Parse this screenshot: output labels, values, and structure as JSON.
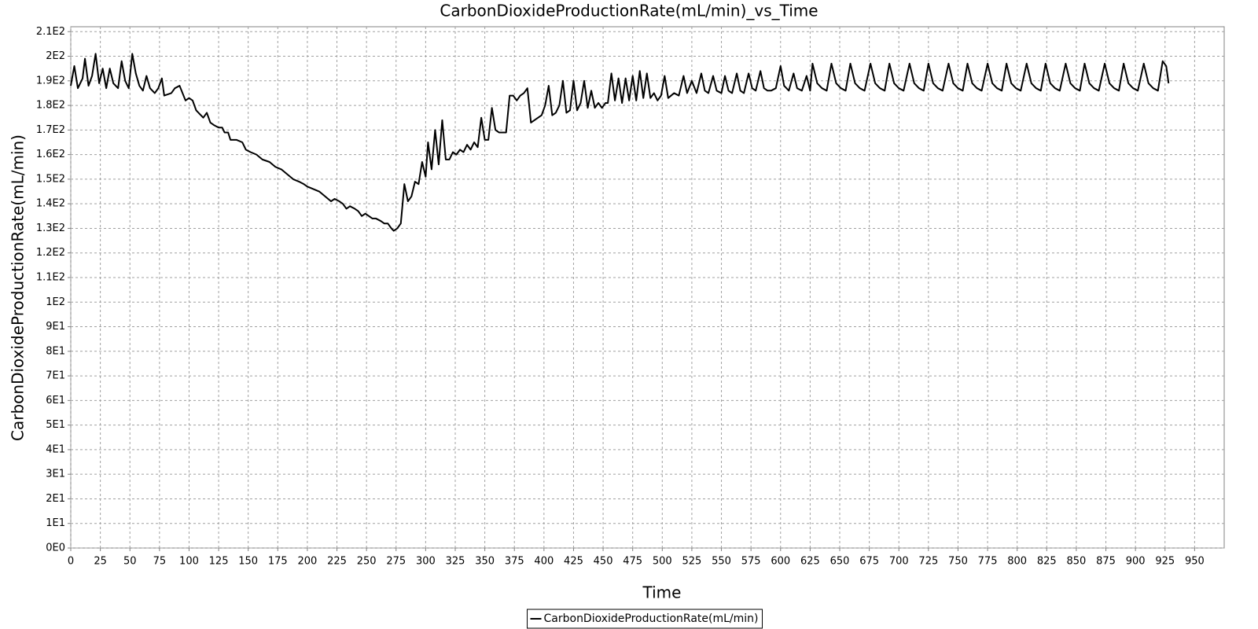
{
  "chart_data": {
    "type": "line",
    "title": "CarbonDioxideProductionRate(mL/min)_vs_Time",
    "x_label": "Time",
    "y_label": "CarbonDioxideProductionRate(mL/min)",
    "grid": true,
    "legend": "bottom",
    "xlim": [
      0,
      975
    ],
    "ylim": [
      0,
      212
    ],
    "xticks": [
      0,
      25,
      50,
      75,
      100,
      125,
      150,
      175,
      200,
      225,
      250,
      275,
      300,
      325,
      350,
      375,
      400,
      425,
      450,
      475,
      500,
      525,
      550,
      575,
      600,
      625,
      650,
      675,
      700,
      725,
      750,
      775,
      800,
      825,
      850,
      875,
      900,
      925,
      950
    ],
    "yticks": [
      {
        "value": 0,
        "label": "0E0"
      },
      {
        "value": 10,
        "label": "1E1"
      },
      {
        "value": 20,
        "label": "2E1"
      },
      {
        "value": 30,
        "label": "3E1"
      },
      {
        "value": 40,
        "label": "4E1"
      },
      {
        "value": 50,
        "label": "5E1"
      },
      {
        "value": 60,
        "label": "6E1"
      },
      {
        "value": 70,
        "label": "7E1"
      },
      {
        "value": 80,
        "label": "8E1"
      },
      {
        "value": 90,
        "label": "9E1"
      },
      {
        "value": 100,
        "label": "1E2"
      },
      {
        "value": 110,
        "label": "1.1E2"
      },
      {
        "value": 120,
        "label": "1.2E2"
      },
      {
        "value": 130,
        "label": "1.3E2"
      },
      {
        "value": 140,
        "label": "1.4E2"
      },
      {
        "value": 150,
        "label": "1.5E2"
      },
      {
        "value": 160,
        "label": "1.6E2"
      },
      {
        "value": 170,
        "label": "1.7E2"
      },
      {
        "value": 180,
        "label": "1.8E2"
      },
      {
        "value": 190,
        "label": "1.9E2"
      },
      {
        "value": 200,
        "label": "2E2"
      },
      {
        "value": 210,
        "label": "2.1E2"
      }
    ],
    "x": [
      0,
      3,
      6,
      10,
      12,
      15,
      18,
      21,
      24,
      27,
      30,
      33,
      36,
      40,
      43,
      46,
      49,
      52,
      55,
      58,
      61,
      64,
      67,
      71,
      74,
      77,
      79,
      85,
      88,
      92,
      97,
      100,
      103,
      106,
      110,
      112,
      115,
      118,
      121,
      125,
      128,
      130,
      133,
      135,
      140,
      145,
      148,
      152,
      157,
      162,
      168,
      173,
      178,
      183,
      188,
      193,
      197,
      200,
      205,
      210,
      215,
      220,
      223,
      227,
      230,
      233,
      236,
      240,
      243,
      246,
      249,
      252,
      255,
      258,
      262,
      265,
      268,
      271,
      273,
      276,
      279,
      282,
      285,
      288,
      291,
      294,
      297,
      300,
      302,
      305,
      308,
      311,
      314,
      317,
      320,
      323,
      326,
      329,
      332,
      335,
      338,
      341,
      344,
      347,
      350,
      353,
      356,
      359,
      362,
      365,
      368,
      371,
      374,
      377,
      380,
      383,
      386,
      389,
      392,
      395,
      398,
      401,
      404,
      407,
      410,
      413,
      416,
      419,
      422,
      425,
      428,
      431,
      434,
      437,
      440,
      443,
      446,
      449,
      452,
      454,
      457,
      460,
      463,
      466,
      469,
      472,
      475,
      478,
      481,
      484,
      487,
      490,
      493,
      496,
      499,
      502,
      505,
      510,
      514,
      518,
      521,
      525,
      529,
      533,
      536,
      539,
      543,
      546,
      550,
      553,
      556,
      559,
      563,
      566,
      569,
      573,
      576,
      579,
      583,
      586,
      589,
      592,
      596,
      600,
      603,
      607,
      611,
      614,
      618,
      622,
      625,
      627,
      631,
      635,
      639,
      643,
      647,
      651,
      655,
      659,
      663,
      667,
      671,
      676,
      680,
      684,
      688,
      692,
      696,
      700,
      704,
      709,
      713,
      717,
      721,
      725,
      729,
      733,
      737,
      742,
      746,
      750,
      754,
      758,
      762,
      766,
      770,
      775,
      779,
      783,
      787,
      791,
      795,
      799,
      803,
      808,
      812,
      816,
      820,
      824,
      828,
      832,
      836,
      841,
      845,
      849,
      853,
      857,
      861,
      865,
      869,
      874,
      878,
      882,
      886,
      890,
      894,
      898,
      902,
      907,
      911,
      915,
      919,
      923,
      926,
      928
    ],
    "series": [
      {
        "name": "CarbonDioxideProductionRate(mL/min)",
        "color": "#000000",
        "values": [
          188,
          196,
          187,
          191,
          199,
          188,
          192,
          201,
          189,
          195,
          187,
          195,
          189,
          187,
          198,
          190,
          187,
          201,
          193,
          188,
          186,
          192,
          187,
          185,
          187,
          191,
          184,
          185,
          187,
          188,
          182,
          183,
          182,
          178,
          176,
          175,
          177,
          173,
          172,
          171,
          171,
          169,
          169,
          166,
          166,
          165,
          162,
          161,
          160,
          158,
          157,
          155,
          154,
          152,
          150,
          149,
          148,
          147,
          146,
          145,
          143,
          141,
          142,
          141,
          140,
          138,
          139,
          138,
          137,
          135,
          136,
          135,
          134,
          134,
          133,
          132,
          132,
          130,
          129,
          130,
          132,
          148,
          141,
          143,
          149,
          148,
          157,
          151,
          165,
          154,
          170,
          156,
          174,
          158,
          158,
          161,
          160,
          162,
          161,
          164,
          162,
          165,
          163,
          175,
          166,
          166,
          179,
          170,
          169,
          169,
          169,
          184,
          184,
          182,
          184,
          185,
          187,
          173,
          174,
          175,
          176,
          180,
          188,
          176,
          177,
          180,
          190,
          177,
          178,
          190,
          178,
          181,
          190,
          179,
          186,
          179,
          181,
          179,
          181,
          181,
          193,
          182,
          191,
          181,
          191,
          182,
          192,
          182,
          194,
          183,
          193,
          183,
          185,
          182,
          184,
          192,
          183,
          185,
          184,
          192,
          185,
          190,
          185,
          193,
          186,
          185,
          192,
          186,
          185,
          192,
          186,
          185,
          193,
          186,
          185,
          193,
          187,
          186,
          194,
          187,
          186,
          186,
          187,
          196,
          188,
          186,
          193,
          187,
          186,
          192,
          186,
          197,
          189,
          187,
          186,
          197,
          189,
          187,
          186,
          197,
          189,
          187,
          186,
          197,
          189,
          187,
          186,
          197,
          189,
          187,
          186,
          197,
          189,
          187,
          186,
          197,
          189,
          187,
          186,
          197,
          189,
          187,
          186,
          197,
          189,
          187,
          186,
          197,
          189,
          187,
          186,
          197,
          189,
          187,
          186,
          197,
          189,
          187,
          186,
          197,
          189,
          187,
          186,
          197,
          189,
          187,
          186,
          197,
          189,
          187,
          186,
          197,
          189,
          187,
          186,
          197,
          189,
          187,
          186,
          197,
          189,
          187,
          186,
          198,
          196,
          189
        ]
      }
    ]
  }
}
